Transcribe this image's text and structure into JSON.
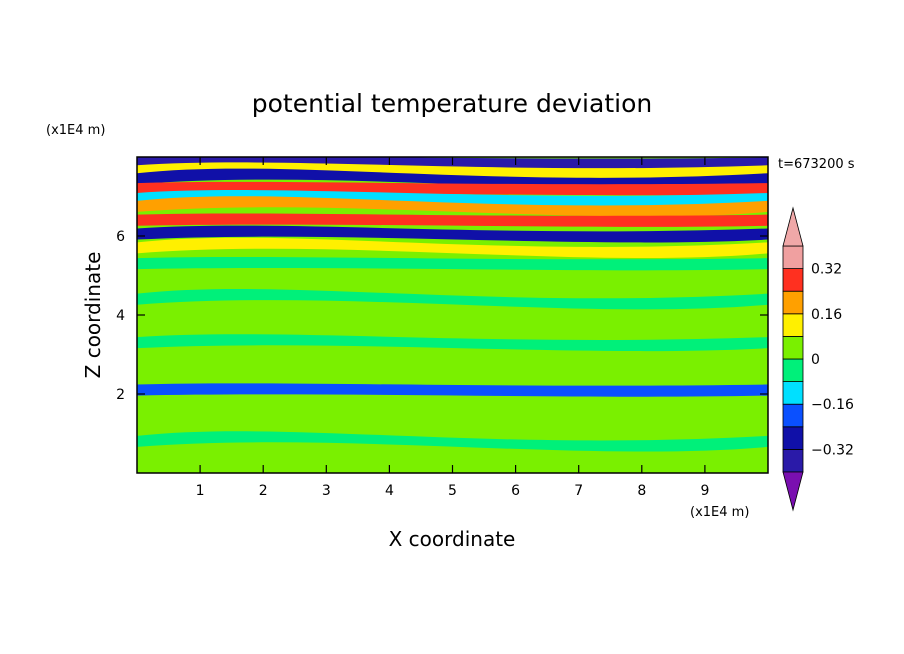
{
  "chart_data": {
    "type": "heatmap",
    "title": "potential temperature deviation",
    "xlabel": "X coordinate",
    "ylabel": "Z coordinate",
    "x_unit": "(x1E4 m)",
    "y_unit": "(x1E4 m)",
    "time_label": "t=673200 s",
    "xlim": [
      0,
      10
    ],
    "ylim": [
      0,
      8
    ],
    "x_ticks": [
      "1",
      "2",
      "3",
      "4",
      "5",
      "6",
      "7",
      "8",
      "9"
    ],
    "y_ticks": [
      "2",
      "4",
      "6"
    ],
    "colorbar": {
      "tick_labels": [
        "0.32",
        "0.16",
        "0",
        "−0.16",
        "−0.32"
      ],
      "tick_values": [
        0.32,
        0.16,
        0,
        -0.16,
        -0.32
      ],
      "extend": "both",
      "levels": [
        -0.4,
        -0.32,
        -0.24,
        -0.16,
        -0.08,
        0,
        0.08,
        0.16,
        0.24,
        0.32,
        0.4
      ],
      "colors": [
        "#7a0fb0",
        "#2a1aa8",
        "#1010a8",
        "#0a50ff",
        "#00e0ff",
        "#00f07a",
        "#7af000",
        "#fff000",
        "#ffa000",
        "#ff3020",
        "#f0a0a0",
        "#f0a8a8"
      ]
    },
    "bands": [
      {
        "z": 7.85,
        "value": -0.35
      },
      {
        "z": 7.65,
        "value": 0.12
      },
      {
        "z": 7.45,
        "value": -0.3
      },
      {
        "z": 7.2,
        "value": 0.25
      },
      {
        "z": 6.95,
        "value": -0.15
      },
      {
        "z": 6.75,
        "value": 0.2
      },
      {
        "z": 6.4,
        "value": 0.3
      },
      {
        "z": 6.05,
        "value": -0.3
      },
      {
        "z": 5.7,
        "value": 0.12
      },
      {
        "z": 5.3,
        "value": -0.05
      },
      {
        "z": 4.9,
        "value": 0.05
      },
      {
        "z": 4.4,
        "value": -0.03
      },
      {
        "z": 3.9,
        "value": 0.03
      },
      {
        "z": 3.3,
        "value": -0.02
      },
      {
        "z": 2.7,
        "value": 0.02
      },
      {
        "z": 2.1,
        "value": -0.2
      },
      {
        "z": 1.5,
        "value": 0.02
      },
      {
        "z": 0.8,
        "value": -0.02
      },
      {
        "z": 0.2,
        "value": 0.02
      }
    ]
  }
}
